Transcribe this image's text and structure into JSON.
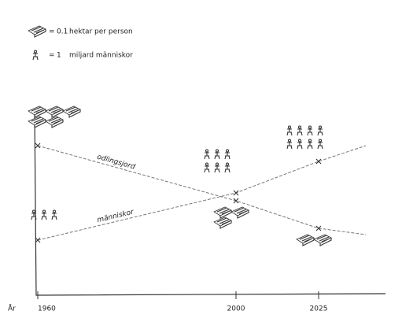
{
  "chart_data": {
    "type": "pictogram-line",
    "legend": [
      {
        "sign": "=",
        "value": 0.1,
        "unit": "hektar per person"
      },
      {
        "sign": "=",
        "value": 1,
        "unit": "miljard människor"
      }
    ],
    "x_label": "År",
    "categories": [
      "1960",
      "2000",
      "2025"
    ],
    "series": [
      {
        "name": "odlingsjord",
        "color": "#777777",
        "values": [
          0.5,
          0.3,
          0.2
        ]
      },
      {
        "name": "människor",
        "color": "#777777",
        "values": [
          3,
          6,
          8
        ]
      }
    ]
  }
}
